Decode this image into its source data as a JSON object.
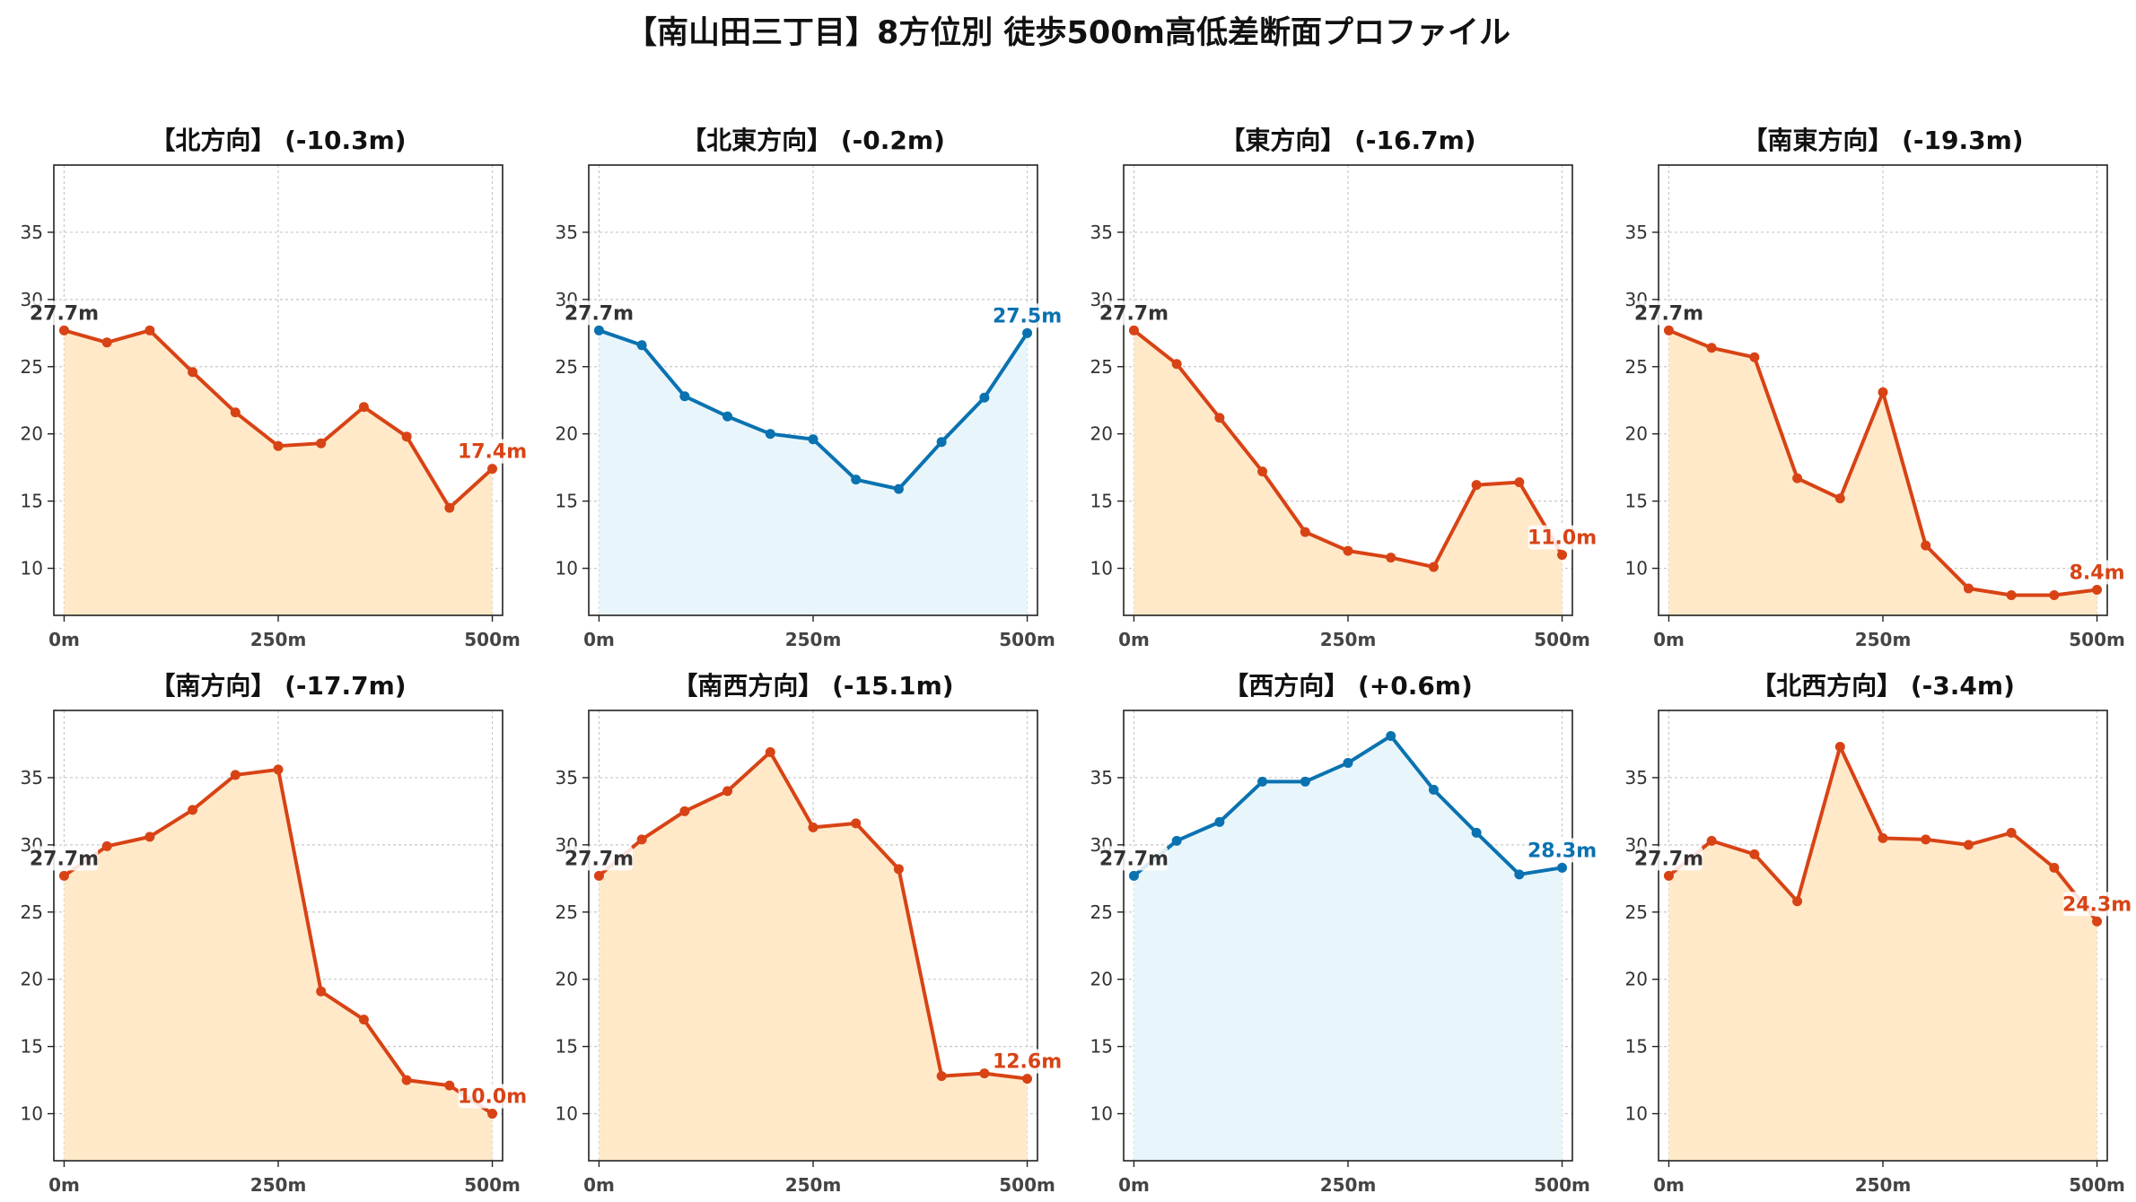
{
  "title": "【南山田三丁目】8方位別 徒歩500m高低差断面プロファイル",
  "colors": {
    "down_line": "#d84315",
    "down_fill": "#ffe9c9",
    "up_line": "#0a72b0",
    "up_fill": "#e8f6fb",
    "grid": "#c8c8c8",
    "axis": "#222222",
    "start_label": "#333333"
  },
  "chart_data": [
    {
      "type": "area",
      "title": "【北方向】 (-10.3m)",
      "trend": "down",
      "x": [
        0,
        50,
        100,
        150,
        200,
        250,
        300,
        350,
        400,
        450,
        500
      ],
      "y": [
        27.7,
        26.8,
        27.7,
        24.6,
        21.6,
        19.1,
        19.3,
        22.0,
        19.8,
        14.5,
        17.4
      ],
      "start_label": "27.7m",
      "end_label": "17.4m",
      "xticks": [
        "0m",
        "250m",
        "500m"
      ],
      "yticks": [
        10,
        15,
        20,
        25,
        30,
        35
      ],
      "ylim": [
        6.5,
        40
      ],
      "xlim": [
        -12,
        512
      ],
      "grid": true
    },
    {
      "type": "area",
      "title": "【北東方向】 (-0.2m)",
      "trend": "up",
      "x": [
        0,
        50,
        100,
        150,
        200,
        250,
        300,
        350,
        400,
        450,
        500
      ],
      "y": [
        27.7,
        26.6,
        22.8,
        21.3,
        20.0,
        19.6,
        16.6,
        15.9,
        19.4,
        22.7,
        27.5
      ],
      "start_label": "27.7m",
      "end_label": "27.5m",
      "xticks": [
        "0m",
        "250m",
        "500m"
      ],
      "yticks": [
        10,
        15,
        20,
        25,
        30,
        35
      ],
      "ylim": [
        6.5,
        40
      ],
      "xlim": [
        -12,
        512
      ],
      "grid": true
    },
    {
      "type": "area",
      "title": "【東方向】 (-16.7m)",
      "trend": "down",
      "x": [
        0,
        50,
        100,
        150,
        200,
        250,
        300,
        350,
        400,
        450,
        500
      ],
      "y": [
        27.7,
        25.2,
        21.2,
        17.2,
        12.7,
        11.3,
        10.8,
        10.1,
        16.2,
        16.4,
        11.0
      ],
      "start_label": "27.7m",
      "end_label": "11.0m",
      "xticks": [
        "0m",
        "250m",
        "500m"
      ],
      "yticks": [
        10,
        15,
        20,
        25,
        30,
        35
      ],
      "ylim": [
        6.5,
        40
      ],
      "xlim": [
        -12,
        512
      ],
      "grid": true
    },
    {
      "type": "area",
      "title": "【南東方向】 (-19.3m)",
      "trend": "down",
      "x": [
        0,
        50,
        100,
        150,
        200,
        250,
        300,
        350,
        400,
        450,
        500
      ],
      "y": [
        27.7,
        26.4,
        25.7,
        16.7,
        15.2,
        23.1,
        11.7,
        8.5,
        8.0,
        8.0,
        8.4
      ],
      "start_label": "27.7m",
      "end_label": "8.4m",
      "xticks": [
        "0m",
        "250m",
        "500m"
      ],
      "yticks": [
        10,
        15,
        20,
        25,
        30,
        35
      ],
      "ylim": [
        6.5,
        40
      ],
      "xlim": [
        -12,
        512
      ],
      "grid": true
    },
    {
      "type": "area",
      "title": "【南方向】 (-17.7m)",
      "trend": "down",
      "x": [
        0,
        50,
        100,
        150,
        200,
        250,
        300,
        350,
        400,
        450,
        500
      ],
      "y": [
        27.7,
        29.9,
        30.6,
        32.6,
        35.2,
        35.6,
        19.1,
        17.0,
        12.5,
        12.1,
        10.0
      ],
      "start_label": "27.7m",
      "end_label": "10.0m",
      "xticks": [
        "0m",
        "250m",
        "500m"
      ],
      "yticks": [
        10,
        15,
        20,
        25,
        30,
        35
      ],
      "ylim": [
        6.5,
        40
      ],
      "xlim": [
        -12,
        512
      ],
      "grid": true
    },
    {
      "type": "area",
      "title": "【南西方向】 (-15.1m)",
      "trend": "down",
      "x": [
        0,
        50,
        100,
        150,
        200,
        250,
        300,
        350,
        400,
        450,
        500
      ],
      "y": [
        27.7,
        30.4,
        32.5,
        34.0,
        36.9,
        31.3,
        31.6,
        28.2,
        12.8,
        13.0,
        12.6
      ],
      "start_label": "27.7m",
      "end_label": "12.6m",
      "xticks": [
        "0m",
        "250m",
        "500m"
      ],
      "yticks": [
        10,
        15,
        20,
        25,
        30,
        35
      ],
      "ylim": [
        6.5,
        40
      ],
      "xlim": [
        -12,
        512
      ],
      "grid": true
    },
    {
      "type": "area",
      "title": "【西方向】 (+0.6m)",
      "trend": "up",
      "x": [
        0,
        50,
        100,
        150,
        200,
        250,
        300,
        350,
        400,
        450,
        500
      ],
      "y": [
        27.7,
        30.3,
        31.7,
        34.7,
        34.7,
        36.1,
        38.1,
        34.1,
        30.9,
        27.8,
        28.3
      ],
      "start_label": "27.7m",
      "end_label": "28.3m",
      "xticks": [
        "0m",
        "250m",
        "500m"
      ],
      "yticks": [
        10,
        15,
        20,
        25,
        30,
        35
      ],
      "ylim": [
        6.5,
        40
      ],
      "xlim": [
        -12,
        512
      ],
      "grid": true
    },
    {
      "type": "area",
      "title": "【北西方向】 (-3.4m)",
      "trend": "down",
      "x": [
        0,
        50,
        100,
        150,
        200,
        250,
        300,
        350,
        400,
        450,
        500
      ],
      "y": [
        27.7,
        30.3,
        29.3,
        25.8,
        37.3,
        30.5,
        30.4,
        30.0,
        30.9,
        28.3,
        24.3
      ],
      "start_label": "27.7m",
      "end_label": "24.3m",
      "xticks": [
        "0m",
        "250m",
        "500m"
      ],
      "yticks": [
        10,
        15,
        20,
        25,
        30,
        35
      ],
      "ylim": [
        6.5,
        40
      ],
      "xlim": [
        -12,
        512
      ],
      "grid": true
    }
  ]
}
